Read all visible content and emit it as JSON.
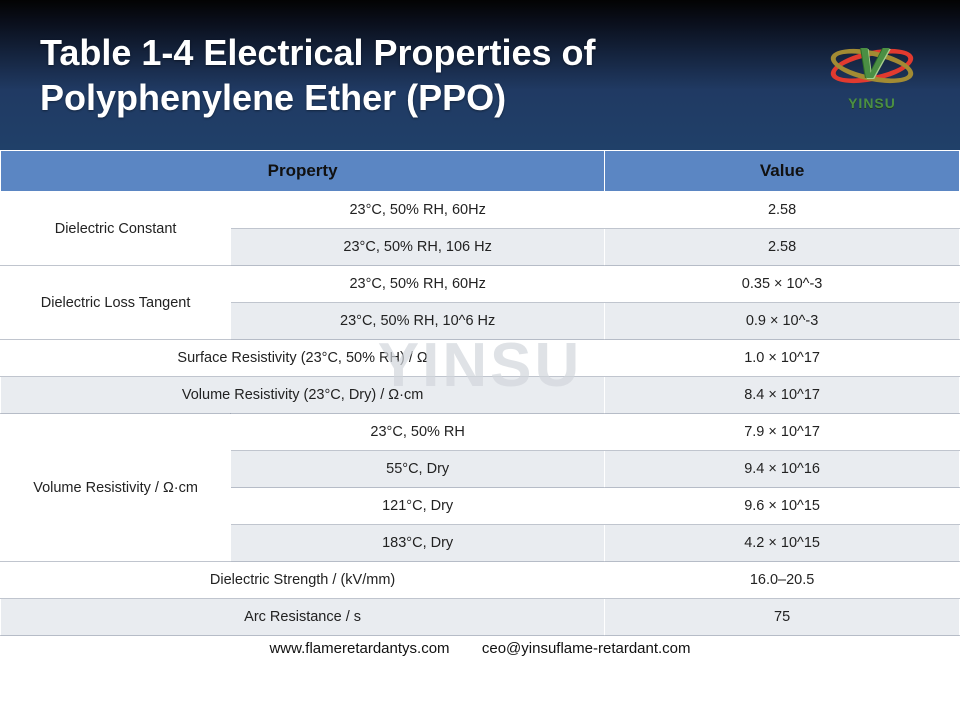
{
  "header": {
    "title": "Table 1-4 Electrical Properties of Polyphenylene Ether (PPO)",
    "title_fontsize": 36,
    "background_gradient": [
      "#030303",
      "#203a63"
    ]
  },
  "logo": {
    "brand_text": "YINSU",
    "brand_color": "#4b8f44",
    "ring_colors": [
      "#e23a2f",
      "#a28b33"
    ],
    "letter": "V"
  },
  "watermark": {
    "text": "YINSU",
    "color": "rgba(210,214,220,.7)"
  },
  "table": {
    "type": "table",
    "header_bg": "#5b86c3",
    "zebra_colors": [
      "#ffffff",
      "#e9ecf0"
    ],
    "border_color_inner": "rgba(140,150,165,.55)",
    "column_widths_pct": [
      24,
      39,
      37
    ],
    "columns": [
      "Property",
      "Value"
    ],
    "groups": [
      {
        "property": "Dielectric Constant",
        "rows": [
          {
            "condition": "23°C, 50% RH, 60Hz",
            "value": "2.58"
          },
          {
            "condition": "23°C, 50% RH, 106 Hz",
            "value": "2.58"
          }
        ]
      },
      {
        "property": "Dielectric Loss Tangent",
        "rows": [
          {
            "condition": "23°C, 50% RH, 60Hz",
            "value": "0.35 × 10^-3"
          },
          {
            "condition": "23°C, 50% RH, 10^6 Hz",
            "value": "0.9 × 10^-3"
          }
        ]
      },
      {
        "property": "Surface Resistivity (23°C, 50% RH) / Ω",
        "rows": [
          {
            "condition": "",
            "value": "1.0 × 10^17"
          }
        ]
      },
      {
        "property": "Volume Resistivity (23°C, Dry) / Ω·cm",
        "rows": [
          {
            "condition": "",
            "value": "8.4 × 10^17"
          }
        ]
      },
      {
        "property": "Volume Resistivity / Ω·cm",
        "rows": [
          {
            "condition": "23°C, 50% RH",
            "value": "7.9 × 10^17"
          },
          {
            "condition": "55°C, Dry",
            "value": "9.4 × 10^16"
          },
          {
            "condition": "121°C, Dry",
            "value": "9.6 × 10^15"
          },
          {
            "condition": "183°C, Dry",
            "value": "4.2 × 10^15"
          }
        ]
      },
      {
        "property": "Dielectric Strength / (kV/mm)",
        "rows": [
          {
            "condition": "",
            "value": "16.0–20.5"
          }
        ]
      },
      {
        "property": "Arc Resistance / s",
        "rows": [
          {
            "condition": "",
            "value": "75"
          }
        ]
      }
    ]
  },
  "footer": {
    "url": "www.flameretardantys.com",
    "email": "ceo@yinsuflame-retardant.com"
  }
}
